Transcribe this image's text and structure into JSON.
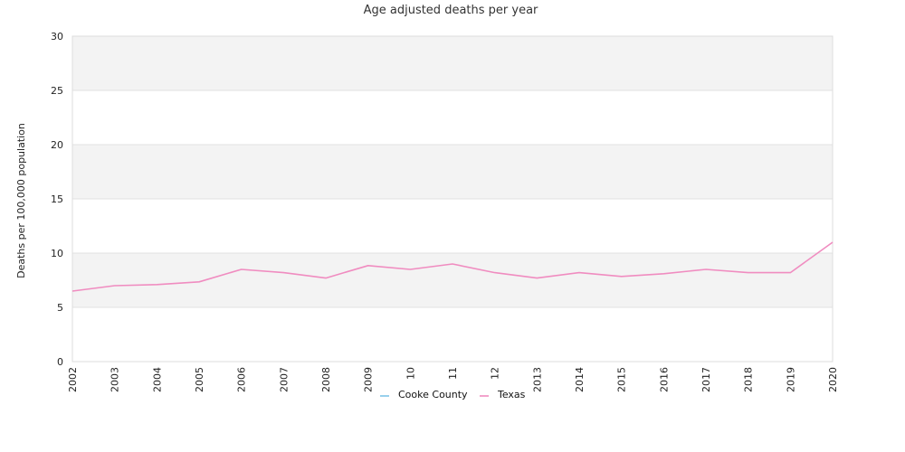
{
  "chart_data": {
    "type": "line",
    "title": "Age adjusted deaths per year",
    "xlabel": "",
    "ylabel": "Deaths per 100,000 population",
    "categories": [
      "2002",
      "2003",
      "2004",
      "2005",
      "2006",
      "2007",
      "2008",
      "2009",
      "10",
      "11",
      "12",
      "2013",
      "2014",
      "2015",
      "2016",
      "2017",
      "2018",
      "2019",
      "2020"
    ],
    "ylim": [
      0,
      30
    ],
    "yticks": [
      0,
      5,
      10,
      15,
      20,
      25,
      30
    ],
    "grid": "alternating horizontal bands",
    "legend_position": "bottom-center",
    "series": [
      {
        "name": "Cooke County",
        "color": "#7fc4e8",
        "values": [
          null,
          null,
          null,
          null,
          null,
          null,
          null,
          null,
          null,
          null,
          null,
          null,
          null,
          null,
          null,
          null,
          null,
          null,
          null
        ]
      },
      {
        "name": "Texas",
        "color": "#f08cc0",
        "values": [
          6.5,
          7.0,
          7.1,
          7.35,
          8.5,
          8.2,
          7.7,
          8.85,
          8.5,
          9.0,
          8.2,
          7.7,
          8.2,
          7.85,
          8.1,
          8.5,
          8.2,
          8.2,
          11.0
        ]
      }
    ],
    "colors": {
      "band": "#f3f3f3",
      "gridline": "#e2e2e2",
      "axis": "#cccccc"
    }
  }
}
